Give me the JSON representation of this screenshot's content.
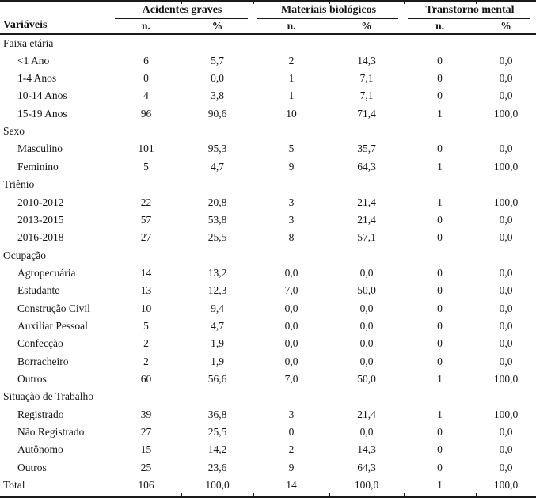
{
  "table": {
    "row_header": "Variáveis",
    "groups": [
      {
        "label": "Acidentes graves",
        "sub": [
          "n.",
          "%"
        ]
      },
      {
        "label": "Materiais biológicos",
        "sub": [
          "n.",
          "%"
        ]
      },
      {
        "label": "Transtorno mental",
        "sub": [
          "n.",
          "%"
        ]
      }
    ],
    "sections": [
      {
        "label": "Faixa etária",
        "rows": [
          {
            "label": "<1 Ano",
            "values": [
              "6",
              "5,7",
              "2",
              "14,3",
              "0",
              "0,0"
            ]
          },
          {
            "label": "1-4 Anos",
            "values": [
              "0",
              "0,0",
              "1",
              "7,1",
              "0",
              "0,0"
            ]
          },
          {
            "label": "10-14 Anos",
            "values": [
              "4",
              "3,8",
              "1",
              "7,1",
              "0",
              "0,0"
            ]
          },
          {
            "label": "15-19 Anos",
            "values": [
              "96",
              "90,6",
              "10",
              "71,4",
              "1",
              "100,0"
            ]
          }
        ]
      },
      {
        "label": "Sexo",
        "rows": [
          {
            "label": "Masculino",
            "values": [
              "101",
              "95,3",
              "5",
              "35,7",
              "0",
              "0,0"
            ]
          },
          {
            "label": "Feminino",
            "values": [
              "5",
              "4,7",
              "9",
              "64,3",
              "1",
              "100,0"
            ]
          }
        ]
      },
      {
        "label": "Triênio",
        "rows": [
          {
            "label": "2010-2012",
            "values": [
              "22",
              "20,8",
              "3",
              "21,4",
              "1",
              "100,0"
            ]
          },
          {
            "label": "2013-2015",
            "values": [
              "57",
              "53,8",
              "3",
              "21,4",
              "0",
              "0,0"
            ]
          },
          {
            "label": "2016-2018",
            "values": [
              "27",
              "25,5",
              "8",
              "57,1",
              "0",
              "0,0"
            ]
          }
        ]
      },
      {
        "label": "Ocupação",
        "rows": [
          {
            "label": "Agropecuária",
            "values": [
              "14",
              "13,2",
              "0,0",
              "0,0",
              "0",
              "0,0"
            ]
          },
          {
            "label": "Estudante",
            "values": [
              "13",
              "12,3",
              "7,0",
              "50,0",
              "0",
              "0,0"
            ]
          },
          {
            "label": "Construção Civil",
            "values": [
              "10",
              "9,4",
              "0,0",
              "0,0",
              "0",
              "0,0"
            ]
          },
          {
            "label": "Auxiliar Pessoal",
            "values": [
              "5",
              "4,7",
              "0,0",
              "0,0",
              "0",
              "0,0"
            ]
          },
          {
            "label": "Confecção",
            "values": [
              "2",
              "1,9",
              "0,0",
              "0,0",
              "0",
              "0,0"
            ]
          },
          {
            "label": "Borracheiro",
            "values": [
              "2",
              "1,9",
              "0,0",
              "0,0",
              "0",
              "0,0"
            ]
          },
          {
            "label": "Outros",
            "values": [
              "60",
              "56,6",
              "7,0",
              "50,0",
              "1",
              "100,0"
            ]
          }
        ]
      },
      {
        "label": "Situação de Trabalho",
        "rows": [
          {
            "label": "Registrado",
            "values": [
              "39",
              "36,8",
              "3",
              "21,4",
              "1",
              "100,0"
            ]
          },
          {
            "label": "Não Registrado",
            "values": [
              "27",
              "25,5",
              "0",
              "0,0",
              "0",
              "0,0"
            ]
          },
          {
            "label": "Autônomo",
            "values": [
              "15",
              "14,2",
              "2",
              "14,3",
              "0",
              "0,0"
            ]
          },
          {
            "label": "Outros",
            "values": [
              "25",
              "23,6",
              "9",
              "64,3",
              "0",
              "0,0"
            ]
          }
        ]
      }
    ],
    "total_row": {
      "label": "Total",
      "values": [
        "106",
        "100,0",
        "14",
        "100,0",
        "1",
        "100,0"
      ]
    }
  }
}
